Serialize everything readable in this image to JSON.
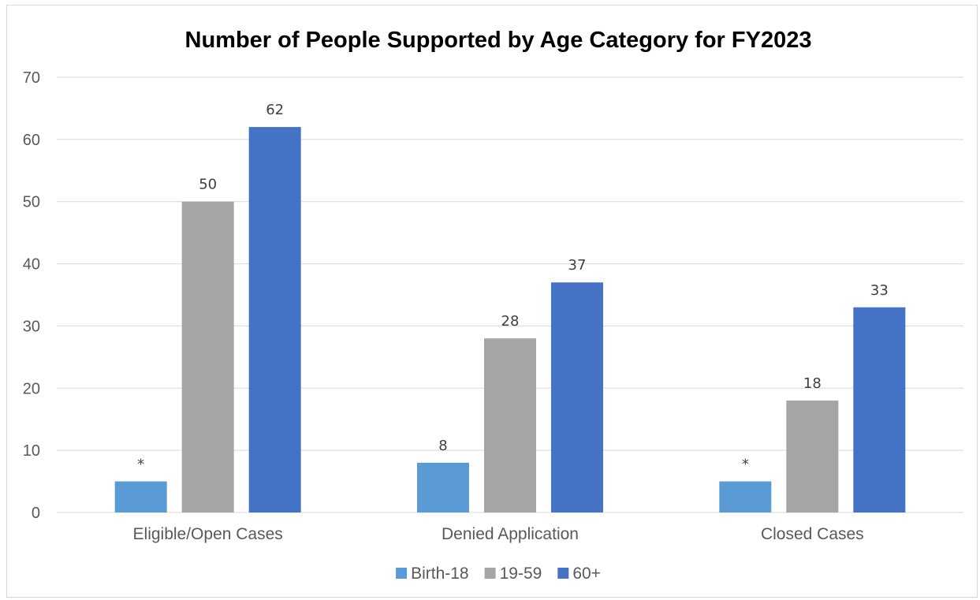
{
  "chart_data": {
    "type": "bar",
    "title": "Number of People Supported by Age Category for FY2023",
    "xlabel": "",
    "ylabel": "",
    "ylim": [
      0,
      70
    ],
    "yticks": [
      0,
      10,
      20,
      30,
      40,
      50,
      60,
      70
    ],
    "grid": true,
    "legend_position": "bottom",
    "categories": [
      "Eligible/Open Cases",
      "Denied Application",
      "Closed Cases"
    ],
    "series": [
      {
        "name": "Birth-18",
        "color": "#5b9bd5",
        "values": [
          5,
          8,
          5
        ],
        "labels": [
          "*",
          "8",
          "*"
        ]
      },
      {
        "name": "19-59",
        "color": "#a5a5a5",
        "values": [
          50,
          28,
          18
        ],
        "labels": [
          "50",
          "28",
          "18"
        ]
      },
      {
        "name": "60+",
        "color": "#4472c4",
        "values": [
          62,
          37,
          33
        ],
        "labels": [
          "62",
          "37",
          "33"
        ]
      }
    ]
  }
}
